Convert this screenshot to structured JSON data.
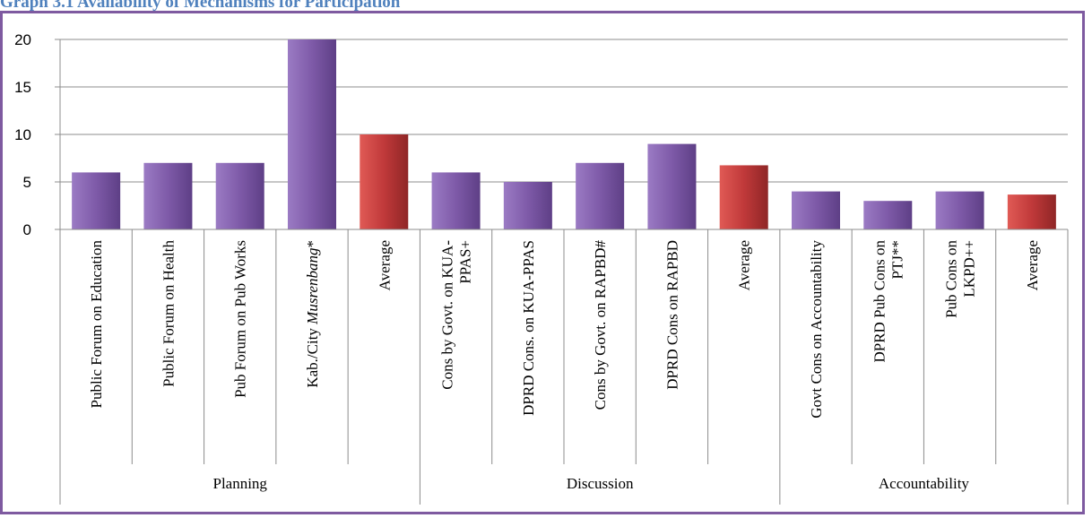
{
  "chart_data": {
    "type": "bar",
    "title": "Graph 3.1 Availability of Mechanisms for Participation",
    "ylim": [
      0,
      20
    ],
    "yticks": [
      0,
      5,
      10,
      15,
      20
    ],
    "grid": true,
    "categories": [
      {
        "label": "Public Forum on Education",
        "group": "Planning",
        "value": 6,
        "kind": "item"
      },
      {
        "label": "Public Forum on Health",
        "group": "Planning",
        "value": 7,
        "kind": "item"
      },
      {
        "label": "Pub Forum on Pub Works",
        "group": "Planning",
        "value": 7,
        "kind": "item"
      },
      {
        "label_parts": [
          {
            "text": "Kab./City "
          },
          {
            "text": "Musrenbang",
            "italic": true
          },
          {
            "text": "*"
          }
        ],
        "label": "Kab./City Musrenbang*",
        "group": "Planning",
        "value": 20,
        "kind": "item"
      },
      {
        "label": "Average",
        "group": "Planning",
        "value": 10,
        "kind": "average"
      },
      {
        "label": "Cons by Govt. on KUA-PPAS+",
        "lines": [
          "Cons by Govt. on KUA-",
          "PPAS+"
        ],
        "group": "Discussion",
        "value": 6,
        "kind": "item"
      },
      {
        "label": "DPRD Cons. on KUA-PPAS",
        "group": "Discussion",
        "value": 5,
        "kind": "item"
      },
      {
        "label": "Cons by Govt. on RAPBD#",
        "group": "Discussion",
        "value": 7,
        "kind": "item"
      },
      {
        "label": "DPRD Cons on RAPBD",
        "group": "Discussion",
        "value": 9,
        "kind": "item"
      },
      {
        "label": "Average",
        "group": "Discussion",
        "value": 6.75,
        "kind": "average"
      },
      {
        "label": "Govt Cons on Accountability",
        "group": "Accountability",
        "value": 4,
        "kind": "item"
      },
      {
        "label": "DPRD Pub Cons on PTJ**",
        "lines": [
          "DPRD Pub Cons on",
          "PTJ**"
        ],
        "group": "Accountability",
        "value": 3,
        "kind": "item"
      },
      {
        "label": "Pub Cons on LKPD++",
        "lines": [
          "Pub Cons on",
          "LKPD++"
        ],
        "group": "Accountability",
        "value": 4,
        "kind": "item"
      },
      {
        "label": "Average",
        "group": "Accountability",
        "value": 3.67,
        "kind": "average"
      }
    ],
    "groups": [
      "Planning",
      "Discussion",
      "Accountability"
    ],
    "colors": {
      "item_top": "#9b7bc4",
      "item_mid": "#7e5aa8",
      "item_bottom": "#5e3f86",
      "average_top": "#e05a55",
      "average_mid": "#c0393a",
      "average_bottom": "#8f2626",
      "grid": "#8c8c8c",
      "title": "#4f81bd",
      "frame": "#7e5aa0"
    }
  }
}
